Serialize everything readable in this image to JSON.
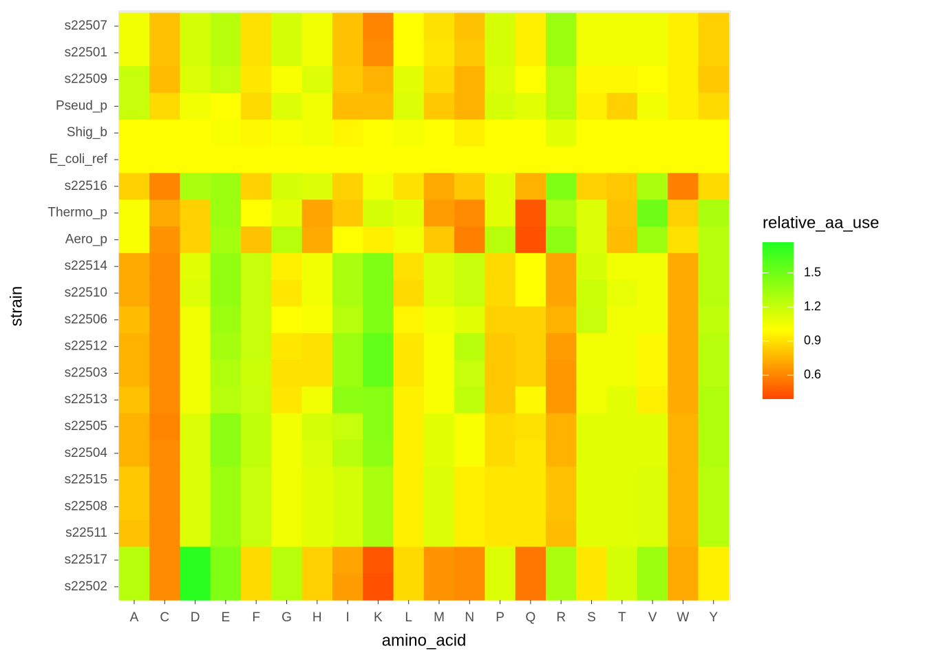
{
  "chart_data": {
    "type": "heatmap",
    "x_label": "amino_acid",
    "y_label": "strain",
    "legend_title": "relative_aa_use",
    "x_categories": [
      "A",
      "C",
      "D",
      "E",
      "F",
      "G",
      "H",
      "I",
      "K",
      "L",
      "M",
      "N",
      "P",
      "Q",
      "R",
      "S",
      "T",
      "V",
      "W",
      "Y"
    ],
    "y_categories": [
      "s22507",
      "s22501",
      "s22509",
      "Pseud_p",
      "Shig_b",
      "E_coli_ref",
      "s22516",
      "Thermo_p",
      "Aero_p",
      "s22514",
      "s22510",
      "s22506",
      "s22512",
      "s22503",
      "s22513",
      "s22505",
      "s22504",
      "s22515",
      "s22508",
      "s22511",
      "s22517",
      "s22502"
    ],
    "values": [
      [
        1.05,
        0.8,
        1.15,
        1.25,
        0.9,
        1.15,
        1.05,
        0.8,
        0.6,
        1.0,
        0.9,
        0.8,
        1.15,
        0.95,
        1.35,
        1.05,
        1.05,
        1.05,
        0.95,
        0.85
      ],
      [
        1.05,
        0.8,
        1.15,
        1.25,
        0.9,
        1.15,
        1.05,
        0.8,
        0.62,
        1.0,
        0.92,
        0.82,
        1.15,
        0.95,
        1.35,
        1.05,
        1.05,
        1.05,
        0.95,
        0.85
      ],
      [
        1.2,
        0.78,
        1.12,
        1.2,
        0.92,
        1.02,
        1.12,
        0.82,
        0.75,
        1.1,
        0.88,
        0.75,
        1.12,
        1.0,
        1.25,
        0.98,
        0.98,
        1.0,
        0.95,
        0.82
      ],
      [
        1.2,
        0.88,
        1.05,
        1.0,
        0.88,
        1.12,
        1.05,
        0.78,
        0.78,
        1.12,
        0.82,
        0.75,
        1.15,
        1.1,
        1.25,
        0.95,
        0.85,
        1.05,
        0.95,
        0.88
      ],
      [
        1.0,
        1.0,
        1.0,
        1.02,
        0.98,
        1.02,
        1.05,
        0.97,
        1.0,
        1.03,
        1.0,
        0.95,
        1.0,
        1.0,
        1.1,
        1.0,
        1.0,
        1.0,
        1.0,
        1.0
      ],
      [
        1,
        1,
        1,
        1,
        1,
        1,
        1,
        1,
        1,
        1,
        1,
        1,
        1,
        1,
        1,
        1,
        1,
        1,
        1,
        1
      ],
      [
        0.85,
        0.6,
        1.3,
        1.35,
        0.85,
        1.15,
        1.12,
        0.85,
        1.05,
        0.9,
        0.72,
        0.82,
        1.1,
        0.75,
        1.45,
        0.85,
        0.82,
        1.3,
        0.58,
        0.88
      ],
      [
        1.02,
        0.72,
        0.85,
        1.35,
        1.0,
        1.1,
        0.7,
        0.82,
        1.15,
        1.1,
        0.68,
        0.62,
        1.1,
        0.45,
        1.3,
        1.12,
        0.8,
        1.5,
        0.85,
        1.3
      ],
      [
        1.02,
        0.65,
        0.85,
        1.32,
        0.8,
        1.25,
        0.72,
        1.0,
        0.95,
        1.05,
        0.82,
        0.58,
        1.25,
        0.43,
        1.4,
        1.12,
        0.78,
        1.35,
        0.9,
        1.25
      ],
      [
        0.72,
        0.62,
        1.1,
        1.38,
        1.2,
        0.95,
        1.05,
        1.3,
        1.45,
        0.9,
        1.12,
        1.2,
        0.88,
        1.0,
        0.7,
        1.15,
        1.05,
        1.05,
        0.72,
        1.25
      ],
      [
        0.72,
        0.62,
        1.12,
        1.38,
        1.2,
        0.92,
        1.05,
        1.3,
        1.45,
        0.88,
        1.12,
        1.2,
        0.88,
        1.0,
        0.7,
        1.18,
        1.08,
        1.05,
        0.72,
        1.25
      ],
      [
        0.78,
        0.62,
        1.05,
        1.35,
        1.2,
        1.0,
        1.02,
        1.25,
        1.45,
        0.97,
        1.05,
        1.1,
        0.85,
        0.85,
        0.75,
        1.2,
        1.05,
        1.05,
        0.72,
        1.22
      ],
      [
        0.75,
        0.62,
        1.05,
        1.32,
        1.2,
        0.92,
        0.9,
        1.35,
        1.55,
        0.92,
        1.02,
        1.25,
        0.82,
        0.85,
        0.68,
        1.05,
        1.05,
        0.98,
        0.72,
        1.25
      ],
      [
        0.75,
        0.62,
        1.05,
        1.28,
        1.18,
        0.9,
        0.9,
        1.35,
        1.55,
        0.92,
        1.02,
        1.2,
        0.82,
        0.85,
        0.66,
        1.05,
        1.05,
        0.98,
        0.72,
        1.25
      ],
      [
        0.8,
        0.62,
        1.05,
        1.25,
        1.2,
        0.92,
        1.05,
        1.4,
        1.42,
        0.95,
        1.02,
        1.22,
        0.82,
        0.98,
        0.66,
        1.05,
        1.1,
        0.95,
        0.72,
        1.28
      ],
      [
        0.75,
        0.6,
        1.12,
        1.4,
        1.22,
        1.05,
        1.15,
        1.2,
        1.42,
        0.95,
        1.1,
        1.02,
        0.88,
        0.9,
        0.75,
        1.1,
        1.1,
        1.1,
        0.75,
        1.28
      ],
      [
        0.75,
        0.62,
        1.12,
        1.4,
        1.22,
        1.05,
        1.12,
        1.25,
        1.4,
        0.95,
        1.1,
        1.02,
        0.88,
        0.92,
        0.75,
        1.1,
        1.1,
        1.1,
        0.75,
        1.28
      ],
      [
        0.82,
        0.62,
        1.12,
        1.35,
        1.2,
        1.05,
        1.1,
        1.15,
        1.3,
        0.95,
        1.12,
        0.95,
        0.92,
        0.92,
        0.8,
        1.1,
        1.1,
        1.12,
        0.75,
        1.25
      ],
      [
        0.82,
        0.62,
        1.12,
        1.35,
        1.2,
        1.05,
        1.1,
        1.15,
        1.3,
        0.95,
        1.12,
        0.95,
        0.92,
        0.92,
        0.8,
        1.1,
        1.1,
        1.12,
        0.75,
        1.25
      ],
      [
        0.8,
        0.62,
        1.12,
        1.35,
        1.2,
        1.05,
        1.1,
        1.15,
        1.3,
        0.95,
        1.12,
        0.95,
        0.92,
        0.92,
        0.78,
        1.1,
        1.1,
        1.12,
        0.75,
        1.25
      ],
      [
        1.25,
        0.62,
        1.75,
        1.45,
        0.88,
        1.25,
        0.85,
        0.7,
        0.45,
        0.88,
        0.65,
        0.62,
        1.12,
        0.55,
        1.3,
        0.92,
        1.15,
        1.35,
        0.72,
        0.95
      ],
      [
        1.25,
        0.62,
        1.75,
        1.45,
        0.88,
        1.25,
        0.85,
        0.68,
        0.43,
        0.88,
        0.65,
        0.62,
        1.12,
        0.55,
        1.3,
        0.92,
        1.15,
        1.35,
        0.72,
        0.95
      ]
    ],
    "fill_stops": [
      {
        "value": 0.39,
        "color": "#ff4500"
      },
      {
        "value": 1.0,
        "color": "#ffff00"
      },
      {
        "value": 1.77,
        "color": "#22ff22"
      }
    ],
    "fill_ticks": [
      0.6,
      0.9,
      1.2,
      1.5
    ]
  }
}
